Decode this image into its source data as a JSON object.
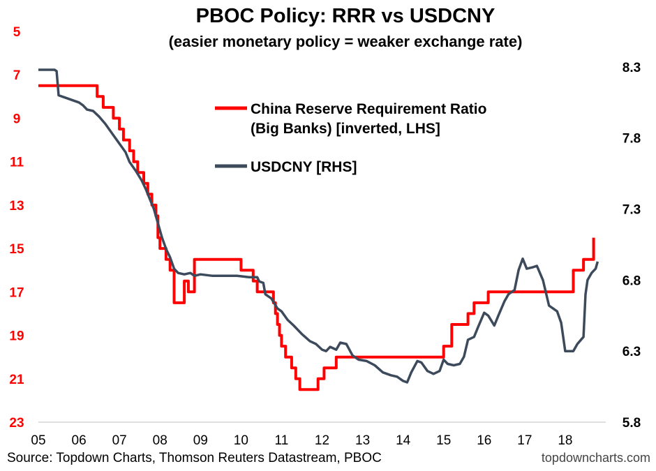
{
  "chart_data": {
    "type": "line",
    "title": "PBOC Policy: RRR vs USDCNY",
    "subtitle": "(easier monetary policy = weaker exchange rate)",
    "x_ticks": [
      "05",
      "06",
      "07",
      "08",
      "09",
      "10",
      "11",
      "12",
      "13",
      "14",
      "15",
      "16",
      "17",
      "18"
    ],
    "xlim": [
      2005,
      2019
    ],
    "y_left": {
      "range": [
        5,
        23
      ],
      "inverted": true,
      "ticks": [
        "5",
        "7",
        "9",
        "11",
        "13",
        "15",
        "17",
        "19",
        "21",
        "23"
      ]
    },
    "y_right": {
      "range": [
        5.8,
        8.55
      ],
      "ticks": [
        "8.3",
        "7.8",
        "7.3",
        "6.8",
        "6.3",
        "5.8"
      ]
    },
    "grid": false,
    "legend_position": "top-center",
    "series": [
      {
        "name_lines": [
          "China Reserve Requirement Ratio",
          "(Big Banks) [inverted, LHS]"
        ],
        "axis": "left",
        "color": "#ff0000",
        "step": true,
        "points": [
          [
            2005.0,
            7.5
          ],
          [
            2006.45,
            8.0
          ],
          [
            2006.6,
            8.5
          ],
          [
            2006.85,
            9.0
          ],
          [
            2007.0,
            9.5
          ],
          [
            2007.1,
            10.0
          ],
          [
            2007.25,
            10.5
          ],
          [
            2007.35,
            11.0
          ],
          [
            2007.45,
            11.5
          ],
          [
            2007.6,
            12.0
          ],
          [
            2007.7,
            12.5
          ],
          [
            2007.8,
            13.0
          ],
          [
            2007.9,
            13.5
          ],
          [
            2007.95,
            14.5
          ],
          [
            2008.0,
            15.0
          ],
          [
            2008.15,
            15.5
          ],
          [
            2008.25,
            16.0
          ],
          [
            2008.35,
            17.5
          ],
          [
            2008.6,
            16.5
          ],
          [
            2008.7,
            17.0
          ],
          [
            2008.85,
            15.5
          ],
          [
            2010.0,
            16.0
          ],
          [
            2010.3,
            16.5
          ],
          [
            2010.4,
            17.0
          ],
          [
            2010.8,
            17.5
          ],
          [
            2010.85,
            18.0
          ],
          [
            2010.9,
            18.5
          ],
          [
            2010.95,
            19.0
          ],
          [
            2011.0,
            19.5
          ],
          [
            2011.1,
            20.0
          ],
          [
            2011.25,
            20.5
          ],
          [
            2011.35,
            21.0
          ],
          [
            2011.45,
            21.5
          ],
          [
            2011.9,
            21.0
          ],
          [
            2012.05,
            20.5
          ],
          [
            2012.35,
            20.0
          ],
          [
            2015.0,
            19.5
          ],
          [
            2015.2,
            18.5
          ],
          [
            2015.6,
            18.0
          ],
          [
            2015.75,
            17.5
          ],
          [
            2016.1,
            17.0
          ],
          [
            2018.2,
            16.0
          ],
          [
            2018.45,
            15.5
          ],
          [
            2018.7,
            14.5
          ]
        ]
      },
      {
        "name": "USDCNY [RHS]",
        "axis": "right",
        "color": "#3c4a5c",
        "step": false,
        "points": [
          [
            2005.0,
            8.28
          ],
          [
            2005.4,
            8.28
          ],
          [
            2005.45,
            8.27
          ],
          [
            2005.5,
            8.1
          ],
          [
            2005.7,
            8.08
          ],
          [
            2005.9,
            8.06
          ],
          [
            2006.0,
            8.05
          ],
          [
            2006.1,
            8.03
          ],
          [
            2006.2,
            8.0
          ],
          [
            2006.35,
            7.99
          ],
          [
            2006.5,
            7.95
          ],
          [
            2006.65,
            7.9
          ],
          [
            2006.8,
            7.84
          ],
          [
            2006.95,
            7.78
          ],
          [
            2007.05,
            7.74
          ],
          [
            2007.15,
            7.7
          ],
          [
            2007.25,
            7.63
          ],
          [
            2007.4,
            7.57
          ],
          [
            2007.55,
            7.5
          ],
          [
            2007.65,
            7.44
          ],
          [
            2007.75,
            7.37
          ],
          [
            2007.85,
            7.3
          ],
          [
            2007.95,
            7.2
          ],
          [
            2008.05,
            7.1
          ],
          [
            2008.15,
            7.02
          ],
          [
            2008.25,
            6.96
          ],
          [
            2008.35,
            6.88
          ],
          [
            2008.45,
            6.85
          ],
          [
            2008.6,
            6.84
          ],
          [
            2008.75,
            6.85
          ],
          [
            2008.85,
            6.83
          ],
          [
            2009.0,
            6.84
          ],
          [
            2009.3,
            6.83
          ],
          [
            2009.6,
            6.83
          ],
          [
            2009.9,
            6.83
          ],
          [
            2010.2,
            6.82
          ],
          [
            2010.4,
            6.82
          ],
          [
            2010.45,
            6.79
          ],
          [
            2010.55,
            6.78
          ],
          [
            2010.6,
            6.7
          ],
          [
            2010.75,
            6.67
          ],
          [
            2010.9,
            6.6
          ],
          [
            2011.0,
            6.58
          ],
          [
            2011.15,
            6.52
          ],
          [
            2011.3,
            6.48
          ],
          [
            2011.5,
            6.42
          ],
          [
            2011.7,
            6.37
          ],
          [
            2011.85,
            6.35
          ],
          [
            2012.0,
            6.31
          ],
          [
            2012.1,
            6.3
          ],
          [
            2012.2,
            6.33
          ],
          [
            2012.35,
            6.31
          ],
          [
            2012.45,
            6.36
          ],
          [
            2012.6,
            6.35
          ],
          [
            2012.75,
            6.27
          ],
          [
            2012.9,
            6.24
          ],
          [
            2013.1,
            6.23
          ],
          [
            2013.3,
            6.2
          ],
          [
            2013.5,
            6.15
          ],
          [
            2013.7,
            6.13
          ],
          [
            2013.85,
            6.12
          ],
          [
            2014.0,
            6.09
          ],
          [
            2014.1,
            6.08
          ],
          [
            2014.2,
            6.15
          ],
          [
            2014.35,
            6.23
          ],
          [
            2014.45,
            6.22
          ],
          [
            2014.6,
            6.16
          ],
          [
            2014.75,
            6.14
          ],
          [
            2014.9,
            6.16
          ],
          [
            2015.0,
            6.24
          ],
          [
            2015.1,
            6.21
          ],
          [
            2015.25,
            6.2
          ],
          [
            2015.4,
            6.21
          ],
          [
            2015.5,
            6.26
          ],
          [
            2015.6,
            6.38
          ],
          [
            2015.75,
            6.4
          ],
          [
            2015.85,
            6.47
          ],
          [
            2016.0,
            6.57
          ],
          [
            2016.1,
            6.55
          ],
          [
            2016.25,
            6.48
          ],
          [
            2016.35,
            6.55
          ],
          [
            2016.5,
            6.65
          ],
          [
            2016.6,
            6.7
          ],
          [
            2016.75,
            6.73
          ],
          [
            2016.85,
            6.87
          ],
          [
            2016.95,
            6.95
          ],
          [
            2017.05,
            6.88
          ],
          [
            2017.2,
            6.89
          ],
          [
            2017.3,
            6.9
          ],
          [
            2017.45,
            6.8
          ],
          [
            2017.6,
            6.62
          ],
          [
            2017.7,
            6.6
          ],
          [
            2017.8,
            6.58
          ],
          [
            2017.9,
            6.5
          ],
          [
            2017.95,
            6.4
          ],
          [
            2018.0,
            6.3
          ],
          [
            2018.1,
            6.3
          ],
          [
            2018.2,
            6.3
          ],
          [
            2018.3,
            6.35
          ],
          [
            2018.45,
            6.4
          ],
          [
            2018.5,
            6.7
          ],
          [
            2018.55,
            6.8
          ],
          [
            2018.65,
            6.85
          ],
          [
            2018.75,
            6.88
          ],
          [
            2018.8,
            6.93
          ]
        ]
      }
    ],
    "source": "Source: Topdown Charts, Thomson Reuters Datastream, PBOC",
    "brand": "topdowncharts.com"
  }
}
